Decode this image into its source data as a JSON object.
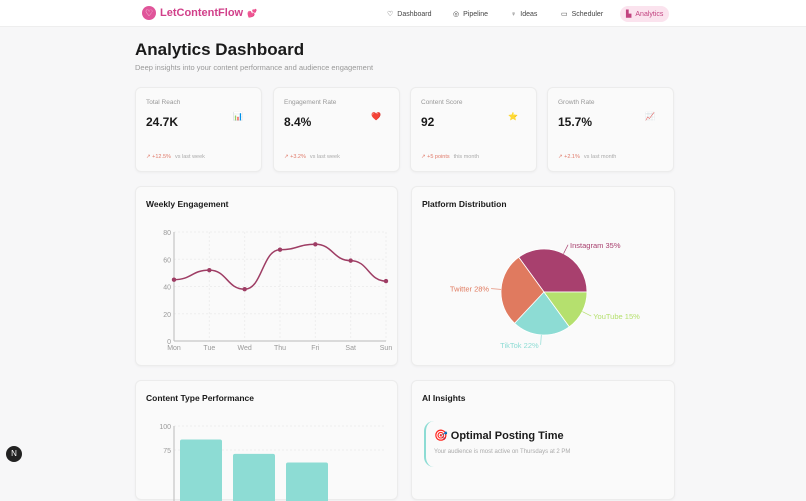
{
  "nav": {
    "brand": "LetContentFlow",
    "brand_emoji": "💕",
    "items": [
      {
        "label": "Dashboard",
        "icon": "heart-icon",
        "glyph": "♡"
      },
      {
        "label": "Pipeline",
        "icon": "layers-icon",
        "glyph": "◎"
      },
      {
        "label": "Ideas",
        "icon": "lightbulb-icon",
        "glyph": "♀"
      },
      {
        "label": "Scheduler",
        "icon": "calendar-icon",
        "glyph": "▭"
      },
      {
        "label": "Analytics",
        "icon": "bar-chart-icon",
        "glyph": "▙",
        "active": true
      }
    ]
  },
  "header": {
    "title": "Analytics Dashboard",
    "subtitle": "Deep insights into your content performance and audience engagement"
  },
  "stats": [
    {
      "label": "Total Reach",
      "value": "24.7K",
      "emoji": "📊",
      "change": "↗ +12.5%",
      "period": "vs last week"
    },
    {
      "label": "Engagement Rate",
      "value": "8.4%",
      "emoji": "❤️",
      "change": "↗ +3.2%",
      "period": "vs last week"
    },
    {
      "label": "Content Score",
      "value": "92",
      "emoji": "⭐",
      "change": "↗ +5 points",
      "period": "this month"
    },
    {
      "label": "Growth Rate",
      "value": "15.7%",
      "emoji": "📈",
      "change": "↗ +2.1%",
      "period": "vs last month"
    }
  ],
  "weekly": {
    "title": "Weekly Engagement"
  },
  "platform": {
    "title": "Platform Distribution"
  },
  "content_type": {
    "title": "Content Type Performance"
  },
  "insights": {
    "title": "AI Insights",
    "items": [
      {
        "emoji": "🎯",
        "title": "Optimal Posting Time",
        "desc": "Your audience is most active on Thursdays at 2 PM"
      }
    ]
  },
  "fab": {
    "label": "N"
  },
  "chart_data": [
    {
      "type": "line",
      "title": "Weekly Engagement",
      "categories": [
        "Mon",
        "Tue",
        "Wed",
        "Thu",
        "Fri",
        "Sat",
        "Sun"
      ],
      "values": [
        45,
        52,
        38,
        67,
        71,
        59,
        44
      ],
      "ylim": [
        0,
        80
      ],
      "yticks": [
        0,
        20,
        40,
        60,
        80
      ],
      "grid": true,
      "color": "#9e3d64"
    },
    {
      "type": "pie",
      "title": "Platform Distribution",
      "slices": [
        {
          "name": "Instagram",
          "value": 35,
          "label": "Instagram 35%",
          "color": "#a8406e"
        },
        {
          "name": "Twitter",
          "value": 28,
          "label": "Twitter 28%",
          "color": "#e07a5f"
        },
        {
          "name": "TikTok",
          "value": 22,
          "label": "TikTok 22%",
          "color": "#8ddcd4"
        },
        {
          "name": "YouTube",
          "value": 15,
          "label": "YouTube 15%",
          "color": "#b5e06e"
        }
      ]
    },
    {
      "type": "bar",
      "title": "Content Type Performance",
      "values": [
        86,
        71,
        62
      ],
      "ylim": [
        0,
        100
      ],
      "yticks": [
        75,
        100
      ],
      "grid": true,
      "color": "#8ddcd4"
    }
  ]
}
